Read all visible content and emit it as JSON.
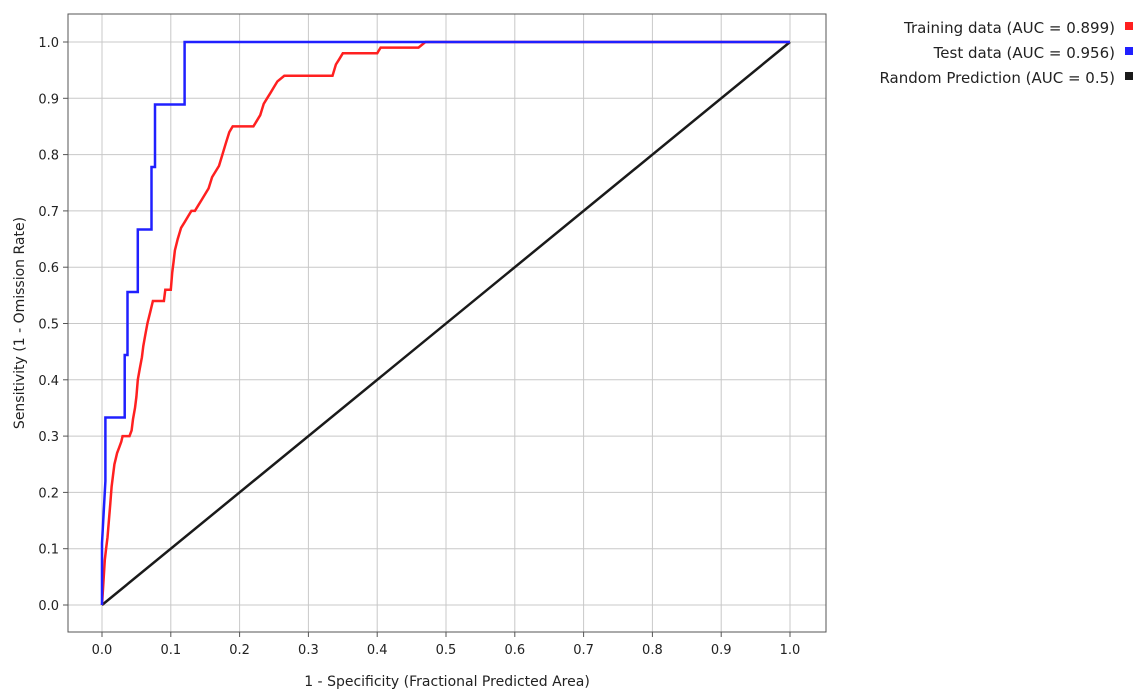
{
  "chart_data": {
    "type": "line",
    "title": "",
    "xlabel": "1 - Specificity  (Fractional Predicted Area)",
    "ylabel": "Sensitivity  (1 - Omission Rate)",
    "xlim": [
      0.0,
      1.0
    ],
    "ylim": [
      0.0,
      1.0
    ],
    "grid": true,
    "legend_position": "top-right outside",
    "x_ticks": [
      "0.0",
      "0.1",
      "0.2",
      "0.3",
      "0.4",
      "0.5",
      "0.6",
      "0.7",
      "0.8",
      "0.9",
      "1.0"
    ],
    "y_ticks": [
      "0.0",
      "0.1",
      "0.2",
      "0.3",
      "0.4",
      "0.5",
      "0.6",
      "0.7",
      "0.8",
      "0.9",
      "1.0"
    ],
    "series": [
      {
        "name": "Training data (AUC = 0.899)",
        "color": "#ff2020",
        "points": [
          [
            0,
            0
          ],
          [
            0.002,
            0.04
          ],
          [
            0.004,
            0.08
          ],
          [
            0.006,
            0.1
          ],
          [
            0.008,
            0.12
          ],
          [
            0.01,
            0.15
          ],
          [
            0.012,
            0.18
          ],
          [
            0.014,
            0.21
          ],
          [
            0.016,
            0.23
          ],
          [
            0.018,
            0.25
          ],
          [
            0.02,
            0.26
          ],
          [
            0.022,
            0.27
          ],
          [
            0.025,
            0.28
          ],
          [
            0.028,
            0.29
          ],
          [
            0.03,
            0.3
          ],
          [
            0.04,
            0.3
          ],
          [
            0.043,
            0.31
          ],
          [
            0.045,
            0.33
          ],
          [
            0.048,
            0.35
          ],
          [
            0.05,
            0.37
          ],
          [
            0.052,
            0.4
          ],
          [
            0.055,
            0.42
          ],
          [
            0.058,
            0.44
          ],
          [
            0.06,
            0.46
          ],
          [
            0.063,
            0.48
          ],
          [
            0.066,
            0.5
          ],
          [
            0.07,
            0.52
          ],
          [
            0.074,
            0.54
          ],
          [
            0.09,
            0.54
          ],
          [
            0.092,
            0.56
          ],
          [
            0.1,
            0.56
          ],
          [
            0.102,
            0.59
          ],
          [
            0.104,
            0.61
          ],
          [
            0.106,
            0.63
          ],
          [
            0.11,
            0.65
          ],
          [
            0.115,
            0.67
          ],
          [
            0.12,
            0.68
          ],
          [
            0.125,
            0.69
          ],
          [
            0.13,
            0.7
          ],
          [
            0.135,
            0.7
          ],
          [
            0.14,
            0.71
          ],
          [
            0.145,
            0.72
          ],
          [
            0.15,
            0.73
          ],
          [
            0.155,
            0.74
          ],
          [
            0.16,
            0.76
          ],
          [
            0.17,
            0.78
          ],
          [
            0.175,
            0.8
          ],
          [
            0.18,
            0.82
          ],
          [
            0.185,
            0.84
          ],
          [
            0.19,
            0.85
          ],
          [
            0.22,
            0.85
          ],
          [
            0.225,
            0.86
          ],
          [
            0.23,
            0.87
          ],
          [
            0.235,
            0.89
          ],
          [
            0.24,
            0.9
          ],
          [
            0.245,
            0.91
          ],
          [
            0.25,
            0.92
          ],
          [
            0.255,
            0.93
          ],
          [
            0.265,
            0.94
          ],
          [
            0.335,
            0.94
          ],
          [
            0.34,
            0.96
          ],
          [
            0.345,
            0.97
          ],
          [
            0.35,
            0.98
          ],
          [
            0.4,
            0.98
          ],
          [
            0.405,
            0.99
          ],
          [
            0.46,
            0.99
          ],
          [
            0.47,
            1.0
          ],
          [
            1.0,
            1.0
          ]
        ]
      },
      {
        "name": "Test data (AUC = 0.956)",
        "color": "#2020ff",
        "points": [
          [
            0,
            0
          ],
          [
            0.0,
            0.11
          ],
          [
            0.005,
            0.22
          ],
          [
            0.005,
            0.333
          ],
          [
            0.033,
            0.333
          ],
          [
            0.033,
            0.444
          ],
          [
            0.037,
            0.444
          ],
          [
            0.037,
            0.556
          ],
          [
            0.052,
            0.556
          ],
          [
            0.052,
            0.667
          ],
          [
            0.072,
            0.667
          ],
          [
            0.072,
            0.778
          ],
          [
            0.077,
            0.778
          ],
          [
            0.077,
            0.889
          ],
          [
            0.12,
            0.889
          ],
          [
            0.12,
            1.0
          ],
          [
            1.0,
            1.0
          ]
        ]
      },
      {
        "name": "Random Prediction (AUC = 0.5)",
        "color": "#1a1a1a",
        "points": [
          [
            0,
            0
          ],
          [
            1,
            1
          ]
        ]
      }
    ]
  }
}
